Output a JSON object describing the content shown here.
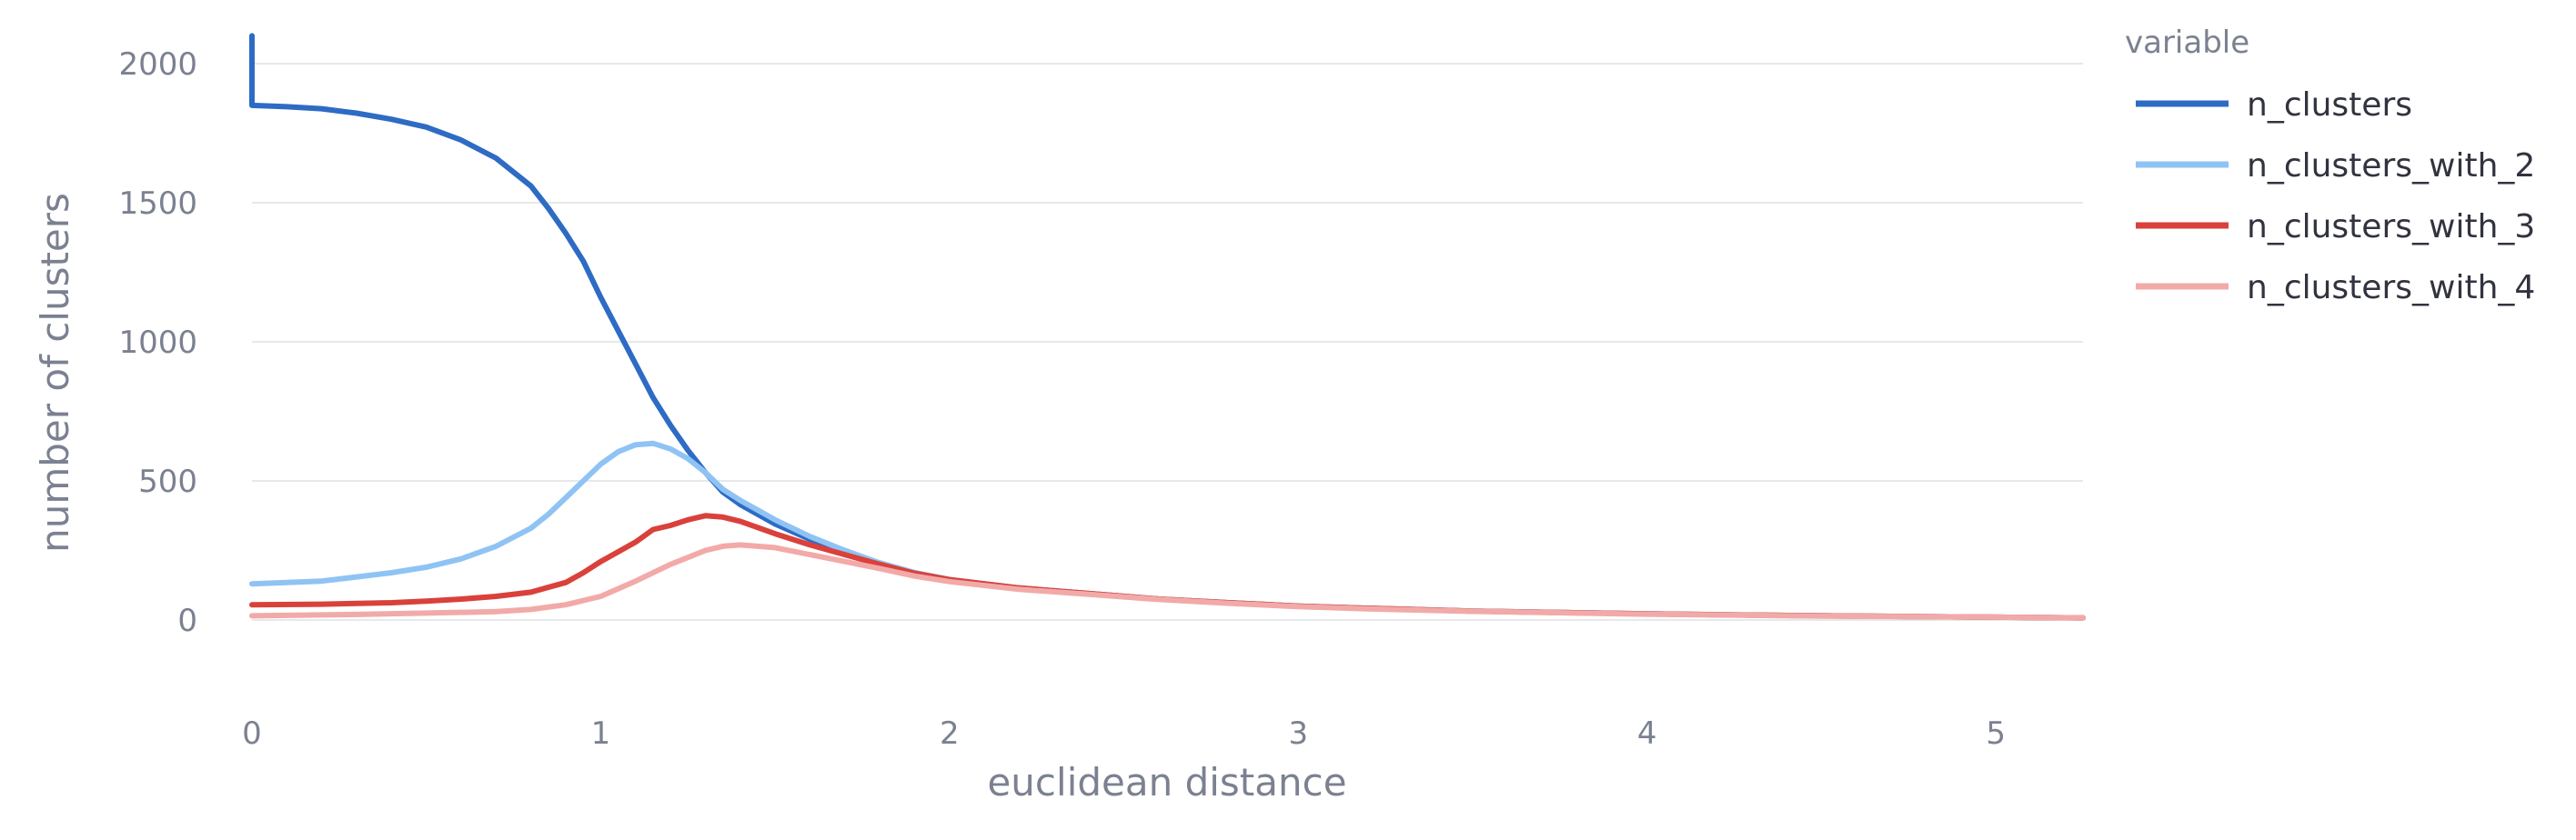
{
  "chart_data": {
    "type": "line",
    "xlabel": "euclidean distance",
    "ylabel": "number of clusters",
    "xlim": [
      0,
      5.25
    ],
    "ylim": [
      -320,
      2100
    ],
    "x_ticks": [
      0,
      1,
      2,
      3,
      4,
      5
    ],
    "y_ticks": [
      0,
      500,
      1000,
      1500,
      2000
    ],
    "grid": "horizontal",
    "legend": {
      "title": "variable",
      "placement": "right"
    },
    "series": [
      {
        "name": "n_clusters",
        "color": "#2e6bc4",
        "points": [
          [
            0,
            2100
          ],
          [
            0,
            1850
          ],
          [
            0.1,
            1845
          ],
          [
            0.2,
            1838
          ],
          [
            0.3,
            1822
          ],
          [
            0.4,
            1800
          ],
          [
            0.5,
            1772
          ],
          [
            0.6,
            1725
          ],
          [
            0.7,
            1660
          ],
          [
            0.8,
            1560
          ],
          [
            0.85,
            1480
          ],
          [
            0.9,
            1390
          ],
          [
            0.95,
            1290
          ],
          [
            1.0,
            1160
          ],
          [
            1.05,
            1040
          ],
          [
            1.1,
            920
          ],
          [
            1.15,
            800
          ],
          [
            1.2,
            700
          ],
          [
            1.25,
            610
          ],
          [
            1.3,
            530
          ],
          [
            1.35,
            460
          ],
          [
            1.4,
            415
          ],
          [
            1.5,
            345
          ],
          [
            1.6,
            290
          ],
          [
            1.7,
            245
          ],
          [
            1.8,
            205
          ],
          [
            1.9,
            170
          ],
          [
            2.0,
            145
          ],
          [
            2.2,
            115
          ],
          [
            2.4,
            95
          ],
          [
            2.6,
            75
          ],
          [
            2.8,
            62
          ],
          [
            3.0,
            50
          ],
          [
            3.2,
            42
          ],
          [
            3.5,
            32
          ],
          [
            4.0,
            22
          ],
          [
            4.5,
            15
          ],
          [
            5.0,
            10
          ],
          [
            5.25,
            8
          ]
        ]
      },
      {
        "name": "n_clusters_with_2",
        "color": "#8fc3f4",
        "points": [
          [
            0,
            130
          ],
          [
            0.1,
            135
          ],
          [
            0.2,
            140
          ],
          [
            0.3,
            155
          ],
          [
            0.4,
            170
          ],
          [
            0.5,
            190
          ],
          [
            0.6,
            220
          ],
          [
            0.7,
            265
          ],
          [
            0.8,
            330
          ],
          [
            0.85,
            380
          ],
          [
            0.9,
            440
          ],
          [
            0.95,
            500
          ],
          [
            1.0,
            560
          ],
          [
            1.05,
            605
          ],
          [
            1.1,
            630
          ],
          [
            1.15,
            635
          ],
          [
            1.2,
            615
          ],
          [
            1.25,
            580
          ],
          [
            1.3,
            530
          ],
          [
            1.35,
            470
          ],
          [
            1.4,
            430
          ],
          [
            1.5,
            360
          ],
          [
            1.6,
            300
          ],
          [
            1.7,
            250
          ],
          [
            1.8,
            205
          ],
          [
            1.9,
            170
          ],
          [
            2.0,
            145
          ],
          [
            2.2,
            115
          ],
          [
            2.4,
            95
          ],
          [
            2.6,
            75
          ],
          [
            2.8,
            62
          ],
          [
            3.0,
            50
          ],
          [
            3.2,
            42
          ],
          [
            3.5,
            32
          ],
          [
            4.0,
            22
          ],
          [
            4.5,
            15
          ],
          [
            5.0,
            10
          ],
          [
            5.25,
            8
          ]
        ]
      },
      {
        "name": "n_clusters_with_3",
        "color": "#d9413a",
        "points": [
          [
            0,
            55
          ],
          [
            0.2,
            57
          ],
          [
            0.4,
            62
          ],
          [
            0.5,
            68
          ],
          [
            0.6,
            75
          ],
          [
            0.7,
            85
          ],
          [
            0.8,
            100
          ],
          [
            0.9,
            135
          ],
          [
            0.95,
            170
          ],
          [
            1.0,
            210
          ],
          [
            1.05,
            245
          ],
          [
            1.1,
            280
          ],
          [
            1.15,
            325
          ],
          [
            1.2,
            340
          ],
          [
            1.25,
            360
          ],
          [
            1.3,
            375
          ],
          [
            1.35,
            370
          ],
          [
            1.4,
            355
          ],
          [
            1.5,
            310
          ],
          [
            1.6,
            270
          ],
          [
            1.7,
            235
          ],
          [
            1.8,
            200
          ],
          [
            1.9,
            168
          ],
          [
            2.0,
            145
          ],
          [
            2.2,
            115
          ],
          [
            2.4,
            95
          ],
          [
            2.6,
            75
          ],
          [
            2.8,
            62
          ],
          [
            3.0,
            50
          ],
          [
            3.2,
            42
          ],
          [
            3.5,
            32
          ],
          [
            4.0,
            22
          ],
          [
            4.5,
            15
          ],
          [
            5.0,
            10
          ],
          [
            5.25,
            8
          ]
        ]
      },
      {
        "name": "n_clusters_with_4",
        "color": "#f2aaa8",
        "points": [
          [
            0,
            15
          ],
          [
            0.3,
            20
          ],
          [
            0.5,
            25
          ],
          [
            0.7,
            30
          ],
          [
            0.8,
            38
          ],
          [
            0.9,
            55
          ],
          [
            1.0,
            85
          ],
          [
            1.1,
            140
          ],
          [
            1.2,
            200
          ],
          [
            1.3,
            250
          ],
          [
            1.35,
            265
          ],
          [
            1.4,
            270
          ],
          [
            1.5,
            260
          ],
          [
            1.6,
            235
          ],
          [
            1.7,
            210
          ],
          [
            1.8,
            185
          ],
          [
            1.9,
            158
          ],
          [
            2.0,
            138
          ],
          [
            2.2,
            110
          ],
          [
            2.4,
            92
          ],
          [
            2.6,
            74
          ],
          [
            2.8,
            60
          ],
          [
            3.0,
            48
          ],
          [
            3.2,
            40
          ],
          [
            3.5,
            31
          ],
          [
            4.0,
            21
          ],
          [
            4.5,
            14
          ],
          [
            5.0,
            10
          ],
          [
            5.25,
            8
          ]
        ]
      }
    ]
  }
}
